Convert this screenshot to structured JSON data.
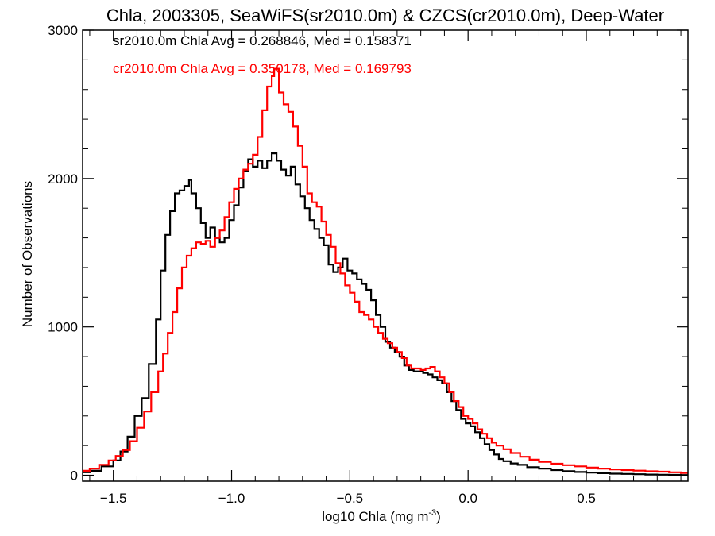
{
  "chart_data": {
    "type": "line",
    "title": "Chla, 2003305, SeaWiFS(sr2010.0m) & CZCS(cr2010.0m), Deep-Water",
    "xlabel_main": "log10 Chla (mg m",
    "xlabel_sup": "-3",
    "xlabel_end": ")",
    "ylabel": "Number of Observations",
    "xlim": [
      -1.63,
      0.93
    ],
    "ylim": [
      -40,
      3000
    ],
    "x_ticks": [
      {
        "value": -1.5,
        "label": "−1.5"
      },
      {
        "value": -1.0,
        "label": "−1.0"
      },
      {
        "value": -0.5,
        "label": "−0.5"
      },
      {
        "value": 0.0,
        "label": "0.0"
      },
      {
        "value": 0.5,
        "label": "0.5"
      }
    ],
    "y_ticks": [
      {
        "value": 0,
        "label": "0"
      },
      {
        "value": 1000,
        "label": "1000"
      },
      {
        "value": 2000,
        "label": "2000"
      },
      {
        "value": 3000,
        "label": "3000"
      }
    ],
    "annotations": [
      {
        "text": "sr2010.0m Chla Avg = 0.268846, Med = 0.158371",
        "color": "#000000"
      },
      {
        "text": "cr2010.0m Chla Avg = 0.350178, Med = 0.169793",
        "color": "#ff0000"
      }
    ],
    "series": [
      {
        "color": "#000000",
        "style": "step",
        "points": [
          [
            -1.63,
            20
          ],
          [
            -1.6,
            30
          ],
          [
            -1.55,
            60
          ],
          [
            -1.5,
            100
          ],
          [
            -1.47,
            160
          ],
          [
            -1.44,
            260
          ],
          [
            -1.41,
            400
          ],
          [
            -1.38,
            520
          ],
          [
            -1.35,
            750
          ],
          [
            -1.32,
            1050
          ],
          [
            -1.3,
            1380
          ],
          [
            -1.28,
            1620
          ],
          [
            -1.26,
            1780
          ],
          [
            -1.24,
            1900
          ],
          [
            -1.22,
            1920
          ],
          [
            -1.2,
            1950
          ],
          [
            -1.18,
            1990
          ],
          [
            -1.17,
            1900
          ],
          [
            -1.15,
            1800
          ],
          [
            -1.13,
            1700
          ],
          [
            -1.11,
            1600
          ],
          [
            -1.09,
            1670
          ],
          [
            -1.07,
            1600
          ],
          [
            -1.05,
            1570
          ],
          [
            -1.03,
            1600
          ],
          [
            -1.01,
            1720
          ],
          [
            -0.99,
            1820
          ],
          [
            -0.97,
            1940
          ],
          [
            -0.95,
            2050
          ],
          [
            -0.93,
            2130
          ],
          [
            -0.91,
            2080
          ],
          [
            -0.89,
            2120
          ],
          [
            -0.87,
            2070
          ],
          [
            -0.85,
            2120
          ],
          [
            -0.83,
            2170
          ],
          [
            -0.81,
            2120
          ],
          [
            -0.79,
            2060
          ],
          [
            -0.77,
            2020
          ],
          [
            -0.75,
            2080
          ],
          [
            -0.73,
            1960
          ],
          [
            -0.71,
            1880
          ],
          [
            -0.69,
            1800
          ],
          [
            -0.67,
            1720
          ],
          [
            -0.65,
            1660
          ],
          [
            -0.63,
            1600
          ],
          [
            -0.61,
            1550
          ],
          [
            -0.59,
            1420
          ],
          [
            -0.57,
            1370
          ],
          [
            -0.55,
            1400
          ],
          [
            -0.53,
            1460
          ],
          [
            -0.51,
            1380
          ],
          [
            -0.49,
            1360
          ],
          [
            -0.47,
            1320
          ],
          [
            -0.45,
            1290
          ],
          [
            -0.43,
            1250
          ],
          [
            -0.41,
            1180
          ],
          [
            -0.39,
            1080
          ],
          [
            -0.37,
            1000
          ],
          [
            -0.35,
            900
          ],
          [
            -0.33,
            860
          ],
          [
            -0.31,
            830
          ],
          [
            -0.29,
            800
          ],
          [
            -0.27,
            740
          ],
          [
            -0.25,
            710
          ],
          [
            -0.23,
            700
          ],
          [
            -0.21,
            700
          ],
          [
            -0.19,
            690
          ],
          [
            -0.17,
            680
          ],
          [
            -0.15,
            660
          ],
          [
            -0.13,
            640
          ],
          [
            -0.11,
            620
          ],
          [
            -0.09,
            560
          ],
          [
            -0.07,
            500
          ],
          [
            -0.05,
            440
          ],
          [
            -0.03,
            380
          ],
          [
            -0.01,
            350
          ],
          [
            0.01,
            330
          ],
          [
            0.03,
            290
          ],
          [
            0.05,
            250
          ],
          [
            0.07,
            210
          ],
          [
            0.09,
            170
          ],
          [
            0.11,
            140
          ],
          [
            0.13,
            110
          ],
          [
            0.15,
            95
          ],
          [
            0.18,
            80
          ],
          [
            0.21,
            70
          ],
          [
            0.25,
            55
          ],
          [
            0.3,
            45
          ],
          [
            0.35,
            35
          ],
          [
            0.4,
            28
          ],
          [
            0.45,
            22
          ],
          [
            0.5,
            18
          ],
          [
            0.55,
            14
          ],
          [
            0.6,
            11
          ],
          [
            0.65,
            9
          ],
          [
            0.7,
            7
          ],
          [
            0.75,
            5
          ],
          [
            0.8,
            4
          ],
          [
            0.85,
            3
          ],
          [
            0.9,
            2
          ]
        ]
      },
      {
        "color": "#ff0000",
        "style": "step",
        "points": [
          [
            -1.63,
            30
          ],
          [
            -1.6,
            45
          ],
          [
            -1.56,
            70
          ],
          [
            -1.52,
            100
          ],
          [
            -1.49,
            130
          ],
          [
            -1.46,
            170
          ],
          [
            -1.43,
            230
          ],
          [
            -1.4,
            320
          ],
          [
            -1.37,
            430
          ],
          [
            -1.34,
            560
          ],
          [
            -1.31,
            700
          ],
          [
            -1.29,
            820
          ],
          [
            -1.27,
            960
          ],
          [
            -1.25,
            1100
          ],
          [
            -1.23,
            1260
          ],
          [
            -1.21,
            1400
          ],
          [
            -1.19,
            1480
          ],
          [
            -1.17,
            1530
          ],
          [
            -1.15,
            1570
          ],
          [
            -1.13,
            1560
          ],
          [
            -1.11,
            1580
          ],
          [
            -1.09,
            1540
          ],
          [
            -1.07,
            1600
          ],
          [
            -1.05,
            1650
          ],
          [
            -1.03,
            1740
          ],
          [
            -1.01,
            1840
          ],
          [
            -0.99,
            1930
          ],
          [
            -0.97,
            2000
          ],
          [
            -0.95,
            2060
          ],
          [
            -0.93,
            2100
          ],
          [
            -0.91,
            2160
          ],
          [
            -0.89,
            2280
          ],
          [
            -0.87,
            2460
          ],
          [
            -0.85,
            2620
          ],
          [
            -0.83,
            2690
          ],
          [
            -0.82,
            2740
          ],
          [
            -0.8,
            2580
          ],
          [
            -0.78,
            2500
          ],
          [
            -0.76,
            2450
          ],
          [
            -0.74,
            2350
          ],
          [
            -0.72,
            2220
          ],
          [
            -0.7,
            2080
          ],
          [
            -0.68,
            1900
          ],
          [
            -0.66,
            1840
          ],
          [
            -0.64,
            1810
          ],
          [
            -0.62,
            1710
          ],
          [
            -0.6,
            1620
          ],
          [
            -0.58,
            1540
          ],
          [
            -0.56,
            1430
          ],
          [
            -0.54,
            1360
          ],
          [
            -0.52,
            1280
          ],
          [
            -0.5,
            1230
          ],
          [
            -0.48,
            1170
          ],
          [
            -0.46,
            1100
          ],
          [
            -0.44,
            1080
          ],
          [
            -0.42,
            1050
          ],
          [
            -0.4,
            1000
          ],
          [
            -0.38,
            960
          ],
          [
            -0.36,
            920
          ],
          [
            -0.34,
            890
          ],
          [
            -0.32,
            860
          ],
          [
            -0.3,
            830
          ],
          [
            -0.28,
            790
          ],
          [
            -0.26,
            740
          ],
          [
            -0.24,
            720
          ],
          [
            -0.22,
            720
          ],
          [
            -0.2,
            710
          ],
          [
            -0.18,
            720
          ],
          [
            -0.16,
            730
          ],
          [
            -0.14,
            700
          ],
          [
            -0.12,
            660
          ],
          [
            -0.1,
            620
          ],
          [
            -0.08,
            560
          ],
          [
            -0.06,
            500
          ],
          [
            -0.04,
            460
          ],
          [
            -0.02,
            400
          ],
          [
            0.0,
            380
          ],
          [
            0.02,
            350
          ],
          [
            0.04,
            310
          ],
          [
            0.06,
            280
          ],
          [
            0.08,
            250
          ],
          [
            0.1,
            220
          ],
          [
            0.12,
            200
          ],
          [
            0.15,
            175
          ],
          [
            0.18,
            150
          ],
          [
            0.22,
            125
          ],
          [
            0.26,
            105
          ],
          [
            0.3,
            90
          ],
          [
            0.35,
            78
          ],
          [
            0.4,
            68
          ],
          [
            0.45,
            60
          ],
          [
            0.5,
            52
          ],
          [
            0.55,
            45
          ],
          [
            0.6,
            40
          ],
          [
            0.65,
            35
          ],
          [
            0.7,
            31
          ],
          [
            0.75,
            27
          ],
          [
            0.8,
            24
          ],
          [
            0.85,
            20
          ],
          [
            0.9,
            15
          ]
        ]
      }
    ]
  }
}
